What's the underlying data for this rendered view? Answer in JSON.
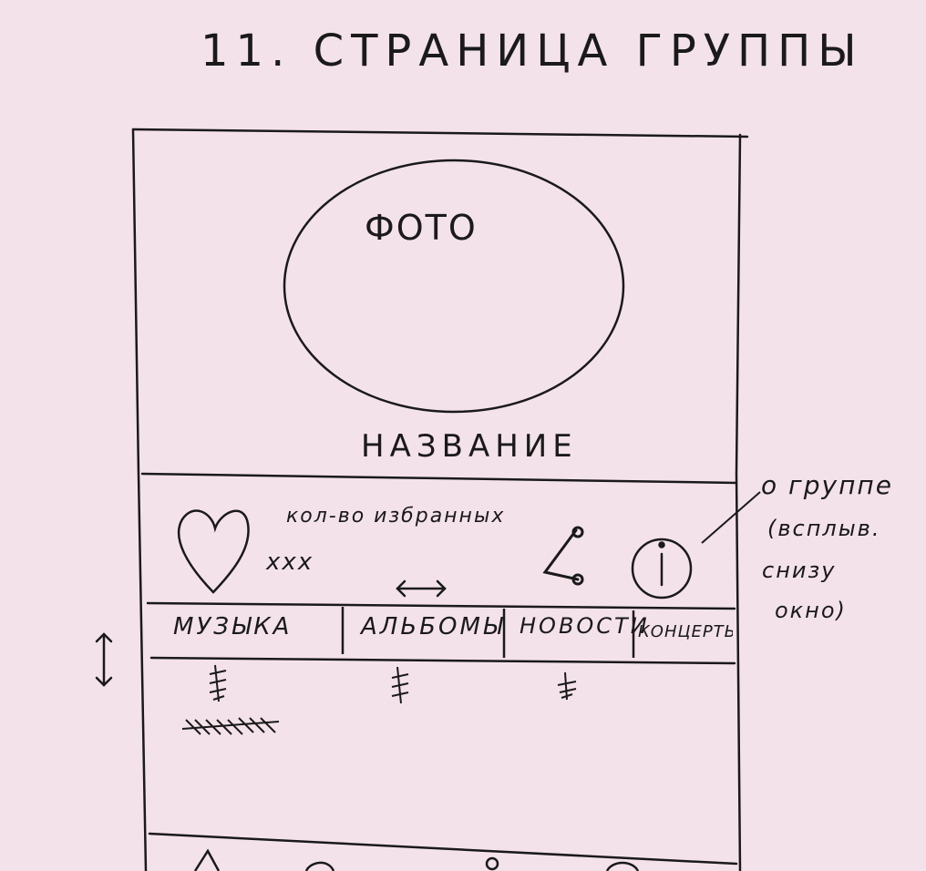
{
  "sketch": {
    "title": "11. СТРАНИЦА ГРУППЫ",
    "header": {
      "photo_label": "ФОТО",
      "name_label": "НАЗВАНИЕ"
    },
    "actions": {
      "favorites_count_label": "кол-во избранных",
      "favorites_count_value": "xxx"
    },
    "tabs": [
      {
        "label": "МУЗЫКА"
      },
      {
        "label": "АЛЬБОМЫ"
      },
      {
        "label": "НОВОСТИ"
      },
      {
        "label": "КОНЦЕРТЫ"
      }
    ],
    "info_note": {
      "line0": "о группе",
      "line1": "(всплыв.",
      "line2": "снизу",
      "line3": "окно)"
    },
    "icons": {
      "favorite": "heart-icon",
      "share": "share-icon",
      "info": "info-icon",
      "swipe_horizontal": "double-arrow-horizontal-icon",
      "scroll_vertical": "double-arrow-vertical-icon"
    },
    "colors": {
      "paper": "#f4e2ea",
      "ink": "#1a1a1a"
    }
  }
}
